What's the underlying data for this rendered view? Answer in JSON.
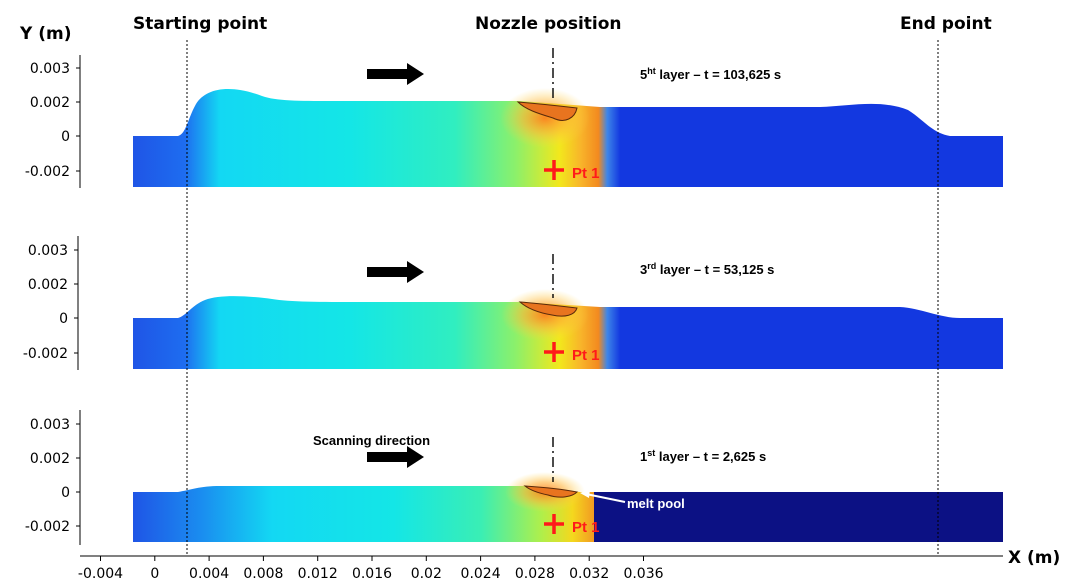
{
  "headers": {
    "y_label": "Y (m)",
    "x_label": "X (m)",
    "start": "Starting point",
    "nozzle": "Nozzle position",
    "end": "End point"
  },
  "y_ticks": [
    "0.003",
    "0.002",
    "0",
    "-0.002"
  ],
  "x_ticks": [
    "-0.004",
    "0",
    "0.004",
    "0.008",
    "0.012",
    "0.016",
    "0.02",
    "0.024",
    "0.028",
    "0.032",
    "0.036"
  ],
  "panels": [
    {
      "layer_prefix": "5",
      "layer_sup": "ht",
      "layer_suffix": " layer – t = 103,625 s",
      "point": "Pt 1"
    },
    {
      "layer_prefix": "3",
      "layer_sup": "rd",
      "layer_suffix": " layer – t = 53,125 s",
      "point": "Pt 1"
    },
    {
      "layer_prefix": "1",
      "layer_sup": "st",
      "layer_suffix": " layer – t = 2,625 s",
      "point": "Pt 1"
    }
  ],
  "annotations": {
    "scanning": "Scanning direction",
    "melt_pool": "melt pool"
  },
  "colors": {
    "substrate": "#1a3fe0",
    "substrate_dark": "#0b0f7a",
    "hot_core": "#e8741f",
    "marker": "#ff1a1a"
  }
}
